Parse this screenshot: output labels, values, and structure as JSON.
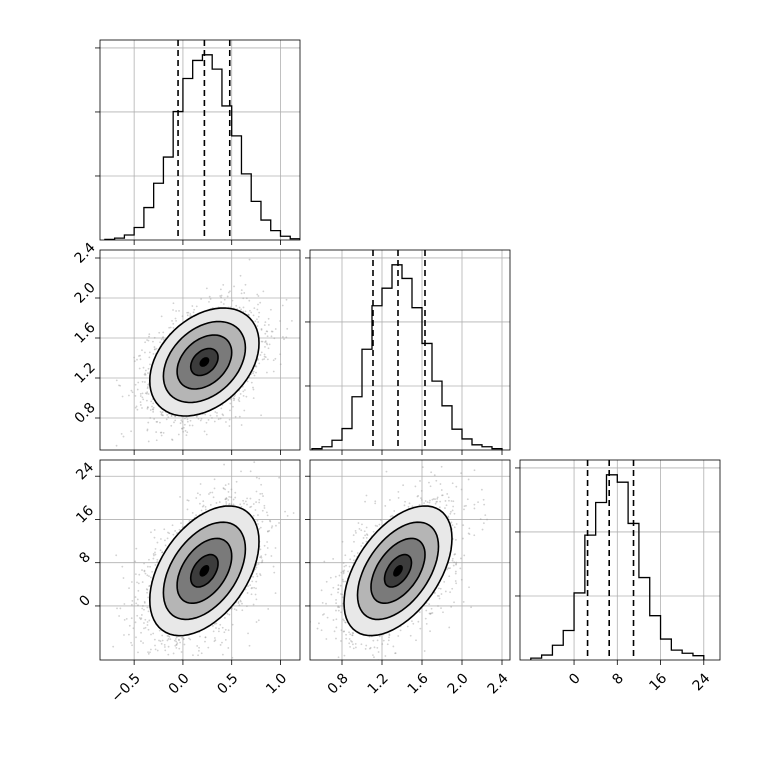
{
  "chart_data": {
    "type": "corner",
    "parameters": [
      {
        "name": "",
        "range": [
          -0.85,
          1.2
        ],
        "ticks": [
          -0.5,
          0.0,
          0.5,
          1.0
        ],
        "tick_labels": [
          "−0.5",
          "0.0",
          "0.5",
          "1.0"
        ],
        "quantiles": [
          -0.05,
          0.22,
          0.48
        ]
      },
      {
        "name": "",
        "range": [
          0.48,
          2.48
        ],
        "ticks": [
          0.8,
          1.2,
          1.6,
          2.0,
          2.4
        ],
        "tick_labels": [
          "0.8",
          "1.2",
          "1.6",
          "2.0",
          "2.4"
        ],
        "quantiles": [
          1.11,
          1.36,
          1.63
        ]
      },
      {
        "name": "",
        "range": [
          -10,
          27
        ],
        "ticks": [
          0,
          8,
          16,
          24
        ],
        "tick_labels": [
          "0",
          "8",
          "16",
          "24"
        ],
        "quantiles": [
          2.5,
          6.5,
          11.0
        ]
      }
    ],
    "histograms": [
      {
        "param": 0,
        "bin_edges": [
          -0.8,
          -0.7,
          -0.6,
          -0.5,
          -0.4,
          -0.3,
          -0.2,
          -0.1,
          0.0,
          0.1,
          0.2,
          0.3,
          0.4,
          0.5,
          0.6,
          0.7,
          0.8,
          0.9,
          1.0,
          1.1,
          1.2
        ],
        "counts": [
          1,
          3,
          8,
          20,
          52,
          91,
          133,
          206,
          259,
          288,
          297,
          274,
          215,
          167,
          106,
          62,
          32,
          15,
          6,
          2
        ]
      },
      {
        "param": 1,
        "bin_edges": [
          0.5,
          0.6,
          0.7,
          0.8,
          0.9,
          1.0,
          1.1,
          1.2,
          1.3,
          1.4,
          1.5,
          1.6,
          1.7,
          1.8,
          1.9,
          2.0,
          2.1,
          2.2,
          2.3,
          2.4
        ],
        "counts": [
          2,
          5,
          15,
          33,
          82,
          155,
          222,
          249,
          285,
          264,
          219,
          164,
          106,
          68,
          32,
          17,
          8,
          5,
          2
        ]
      },
      {
        "param": 2,
        "bin_edges": [
          -8,
          -6,
          -4,
          -2,
          0,
          2,
          4,
          6,
          8,
          10,
          12,
          14,
          16,
          18,
          20,
          22,
          24
        ],
        "counts": [
          3,
          8,
          24,
          48,
          109,
          203,
          256,
          301,
          289,
          222,
          134,
          72,
          34,
          16,
          11,
          7
        ]
      }
    ],
    "joint_2d": [
      {
        "x_param": 0,
        "y_param": 1,
        "center": [
          0.22,
          1.36
        ],
        "sigma": [
          0.28,
          0.27
        ],
        "correlation": 0.35
      },
      {
        "x_param": 0,
        "y_param": 2,
        "center": [
          0.22,
          6.5
        ],
        "sigma": [
          0.28,
          6.0
        ],
        "correlation": 0.45
      },
      {
        "x_param": 1,
        "y_param": 2,
        "center": [
          1.36,
          6.5
        ],
        "sigma": [
          0.27,
          6.0
        ],
        "correlation": 0.5
      }
    ],
    "contour_levels": [
      0.5,
      1.0,
      1.5,
      2.0
    ],
    "grid": true,
    "legend": "none",
    "colors": {
      "line": "#000000",
      "grid": "#b0b0b0",
      "points": "#9a9a9a"
    }
  }
}
